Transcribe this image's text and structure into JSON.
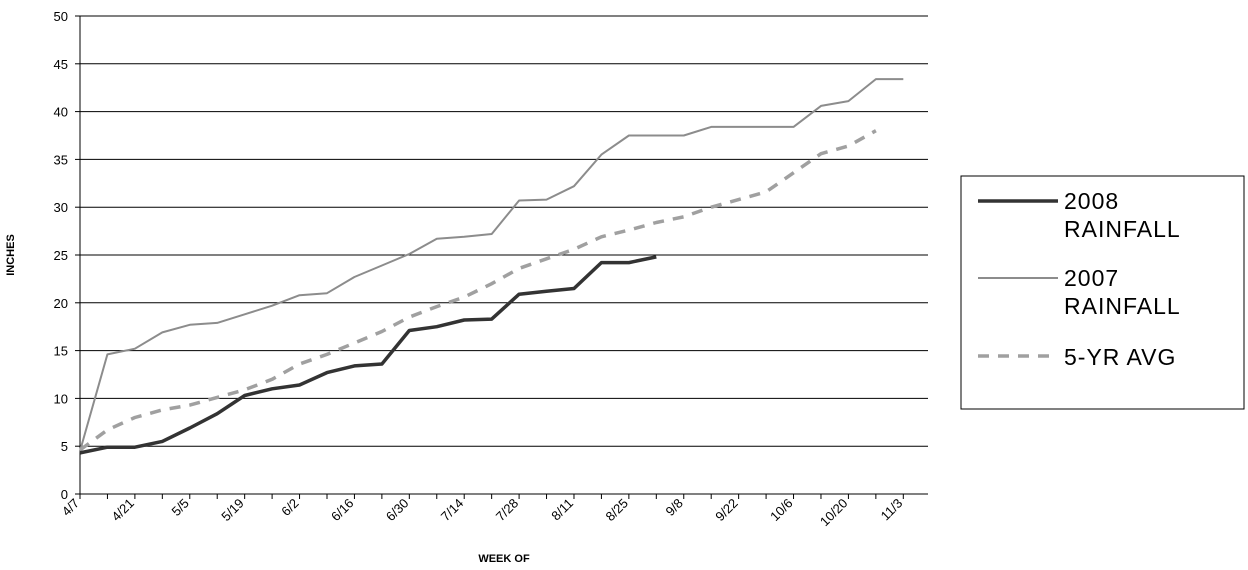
{
  "chart_data": {
    "type": "line",
    "xlabel": "WEEK OF",
    "ylabel": "INCHES",
    "ylim": [
      0,
      50
    ],
    "yticks": [
      "0",
      "5",
      "10",
      "15",
      "20",
      "25",
      "30",
      "35",
      "40",
      "45",
      "50"
    ],
    "x_labels": [
      "4/7",
      "4/21",
      "5/5",
      "5/19",
      "6/2",
      "6/16",
      "6/30",
      "7/14",
      "7/28",
      "8/11",
      "8/25",
      "9/8",
      "9/22",
      "10/6",
      "10/20",
      "11/3"
    ],
    "grid": "horizontal",
    "legend_position": "right",
    "series": [
      {
        "name": "2008 RAINFALL",
        "color": "#333333",
        "style": "solid-thick",
        "values": [
          4.3,
          4.9,
          4.9,
          5.5,
          6.9,
          8.4,
          10.3,
          11.0,
          11.4,
          12.7,
          13.4,
          13.6,
          17.1,
          17.5,
          18.2,
          18.3,
          20.9,
          21.2,
          21.5,
          24.2,
          24.2,
          24.8
        ]
      },
      {
        "name": "2007 RAINFALL",
        "color": "#8c8c8c",
        "style": "solid-thin",
        "values": [
          4.5,
          14.6,
          15.2,
          16.9,
          17.7,
          17.9,
          18.8,
          19.7,
          20.8,
          21.0,
          22.7,
          23.9,
          25.1,
          26.7,
          26.9,
          27.2,
          30.7,
          30.8,
          32.2,
          35.5,
          37.5,
          37.5,
          37.5,
          38.4,
          38.4,
          38.4,
          38.4,
          40.6,
          41.1,
          43.4,
          43.4
        ]
      },
      {
        "name": "5-YR AVG",
        "color": "#a0a0a0",
        "style": "dashed",
        "values": [
          4.6,
          6.7,
          8.0,
          8.8,
          9.3,
          10.1,
          10.9,
          12.0,
          13.6,
          14.6,
          15.8,
          17.0,
          18.5,
          19.6,
          20.6,
          22.0,
          23.6,
          24.6,
          25.6,
          26.9,
          27.6,
          28.4,
          29.0,
          30.0,
          30.8,
          31.6,
          33.6,
          35.6,
          36.4,
          38.0
        ]
      }
    ]
  }
}
